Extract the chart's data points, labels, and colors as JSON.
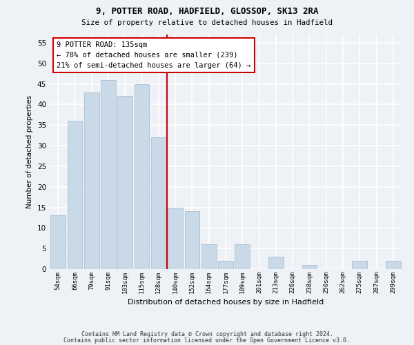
{
  "title1": "9, POTTER ROAD, HADFIELD, GLOSSOP, SK13 2RA",
  "title2": "Size of property relative to detached houses in Hadfield",
  "xlabel": "Distribution of detached houses by size in Hadfield",
  "ylabel": "Number of detached properties",
  "categories": [
    "54sqm",
    "66sqm",
    "79sqm",
    "91sqm",
    "103sqm",
    "115sqm",
    "128sqm",
    "140sqm",
    "152sqm",
    "164sqm",
    "177sqm",
    "189sqm",
    "201sqm",
    "213sqm",
    "226sqm",
    "238sqm",
    "250sqm",
    "262sqm",
    "275sqm",
    "287sqm",
    "299sqm"
  ],
  "values": [
    13,
    36,
    43,
    46,
    42,
    45,
    32,
    15,
    14,
    6,
    2,
    6,
    0,
    3,
    0,
    1,
    0,
    0,
    2,
    0,
    2
  ],
  "bar_color": "#c9d9e8",
  "bar_edgecolor": "#a8bfd0",
  "vline_color": "#cc0000",
  "annotation_line1": "9 POTTER ROAD: 135sqm",
  "annotation_line2": "← 78% of detached houses are smaller (239)",
  "annotation_line3": "21% of semi-detached houses are larger (64) →",
  "annotation_box_color": "#ffffff",
  "annotation_box_edgecolor": "#cc0000",
  "ylim": [
    0,
    57
  ],
  "yticks": [
    0,
    5,
    10,
    15,
    20,
    25,
    30,
    35,
    40,
    45,
    50,
    55
  ],
  "background_color": "#eef2f7",
  "grid_color": "#ffffff",
  "footer1": "Contains HM Land Registry data © Crown copyright and database right 2024.",
  "footer2": "Contains public sector information licensed under the Open Government Licence v3.0."
}
